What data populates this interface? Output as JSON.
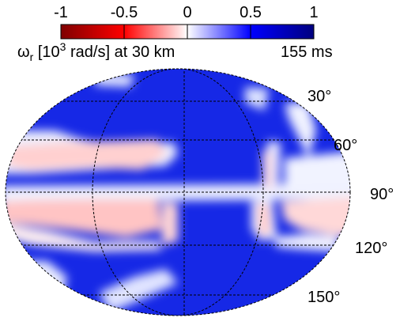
{
  "colorbar": {
    "ticks": [
      {
        "value": -1,
        "label": "-1"
      },
      {
        "value": -0.5,
        "label": "-0.5"
      },
      {
        "value": 0,
        "label": "0"
      },
      {
        "value": 0.5,
        "label": "0.5"
      },
      {
        "value": 1,
        "label": "1"
      }
    ],
    "range": [
      -1,
      1
    ],
    "colormap": [
      "#7f0000",
      "#ff0000",
      "#ffffff",
      "#0000ff",
      "#00007f"
    ]
  },
  "quantity": {
    "symbol": "ω",
    "subscript": "r",
    "text_before_exp": " [10",
    "exponent": "3",
    "text_after_exp": " rad/s] at 30 km"
  },
  "time_label": "155 ms",
  "latitude_labels": [
    "30°",
    "60°",
    "90°",
    "120°",
    "150°"
  ],
  "map": {
    "projection": "Hammer-Aitoff",
    "graticule": {
      "latitudes_deg": [
        30,
        60,
        90,
        120,
        150
      ],
      "longitudes_deg": [
        -90,
        0,
        90
      ]
    }
  }
}
